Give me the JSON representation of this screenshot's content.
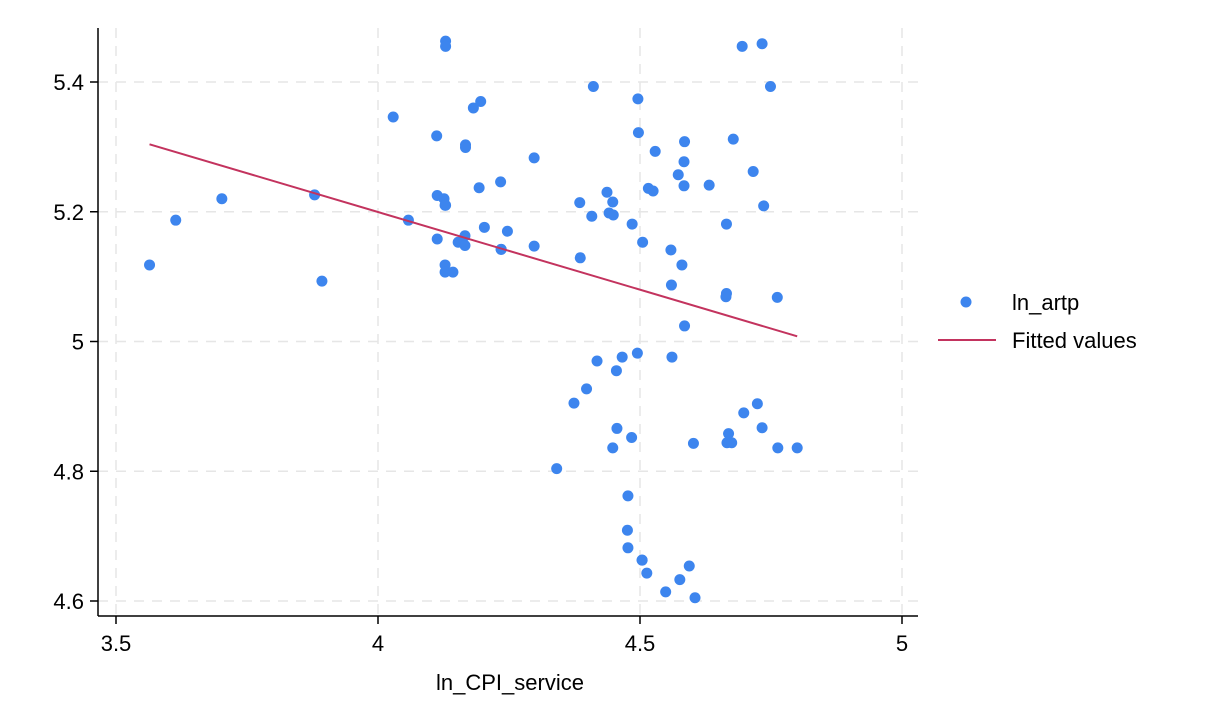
{
  "chart_data": {
    "type": "scatter",
    "title": "",
    "xlabel": "ln_CPI_service",
    "ylabel": "",
    "xlim": [
      3.5,
      5.0
    ],
    "ylim": [
      4.6,
      5.45
    ],
    "x_ticks": [
      3.5,
      4.0,
      4.5,
      5.0
    ],
    "x_tick_labels": [
      "3.5",
      "4",
      "4.5",
      "5"
    ],
    "y_ticks": [
      4.6,
      4.8,
      5.0,
      5.2,
      5.4
    ],
    "y_tick_labels": [
      "4.6",
      "4.8",
      "5",
      "5.2",
      "5.4"
    ],
    "grid": true,
    "legend_position": "right",
    "colors": {
      "points": "#3d85ee",
      "fit_line": "#c3335e",
      "grid": "#e6e6e6",
      "axis": "#000000"
    },
    "series": [
      {
        "name": "ln_artp",
        "kind": "scatter",
        "x": [
          3.564,
          3.614,
          3.702,
          3.879,
          3.893,
          4.029,
          4.058,
          4.112,
          4.113,
          4.113,
          4.126,
          4.128,
          4.128,
          4.128,
          4.129,
          4.129,
          4.129,
          4.143,
          4.153,
          4.166,
          4.166,
          4.167,
          4.167,
          4.182,
          4.193,
          4.196,
          4.203,
          4.234,
          4.235,
          4.235,
          4.247,
          4.298,
          4.298,
          4.341,
          4.374,
          4.385,
          4.386,
          4.398,
          4.408,
          4.411,
          4.418,
          4.437,
          4.441,
          4.448,
          4.448,
          4.449,
          4.455,
          4.456,
          4.466,
          4.476,
          4.477,
          4.477,
          4.484,
          4.485,
          4.495,
          4.496,
          4.497,
          4.504,
          4.504,
          4.505,
          4.513,
          4.516,
          4.525,
          4.529,
          4.549,
          4.559,
          4.56,
          4.561,
          4.573,
          4.576,
          4.58,
          4.584,
          4.584,
          4.585,
          4.585,
          4.594,
          4.602,
          4.605,
          4.632,
          4.664,
          4.665,
          4.665,
          4.666,
          4.669,
          4.675,
          4.678,
          4.695,
          4.698,
          4.716,
          4.724,
          4.733,
          4.733,
          4.736,
          4.749,
          4.762,
          4.763,
          4.8
        ],
        "y": [
          5.118,
          5.187,
          5.22,
          5.226,
          5.093,
          5.346,
          5.187,
          5.317,
          5.225,
          5.158,
          5.22,
          5.21,
          5.118,
          5.107,
          5.463,
          5.455,
          5.21,
          5.107,
          5.153,
          5.163,
          5.148,
          5.303,
          5.299,
          5.36,
          5.237,
          5.37,
          5.176,
          5.246,
          5.142,
          5.142,
          5.17,
          5.147,
          5.283,
          4.804,
          4.905,
          5.214,
          5.129,
          4.927,
          5.193,
          5.393,
          4.97,
          5.23,
          5.198,
          4.836,
          5.215,
          5.195,
          4.955,
          4.866,
          4.976,
          4.709,
          4.682,
          4.762,
          4.852,
          5.181,
          4.982,
          5.374,
          5.322,
          4.663,
          4.663,
          5.153,
          4.643,
          5.236,
          5.232,
          5.293,
          4.614,
          5.141,
          5.087,
          4.976,
          5.257,
          4.633,
          5.118,
          5.24,
          5.277,
          5.308,
          5.024,
          4.654,
          4.843,
          4.605,
          5.241,
          5.069,
          5.074,
          5.181,
          4.844,
          4.858,
          4.844,
          5.312,
          5.455,
          4.89,
          5.262,
          4.904,
          4.867,
          5.459,
          5.209,
          5.393,
          5.068,
          4.836,
          4.836
        ]
      },
      {
        "name": "Fitted values",
        "kind": "line",
        "x": [
          3.564,
          4.8
        ],
        "y": [
          5.304,
          5.008
        ]
      }
    ]
  },
  "legend": {
    "items": [
      {
        "label": "ln_artp"
      },
      {
        "label": "Fitted values"
      }
    ]
  }
}
